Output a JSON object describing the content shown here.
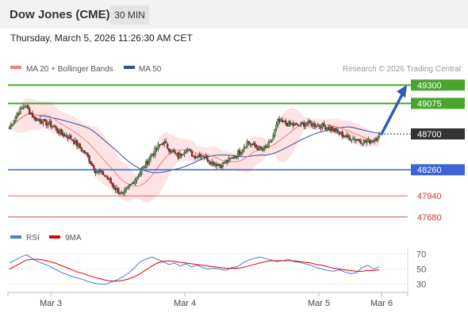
{
  "header": {
    "title": "Dow Jones (CME)",
    "timeframe": "30 MIN",
    "datetime": "Thursday, March 5, 2026 11:26:30 AM CET"
  },
  "legend": {
    "ma20_label": "MA 20 + Bollinger Bands",
    "ma50_label": "MA 50",
    "copyright": "Research © 2026 Trading Central",
    "ma20_color": "#f08080",
    "ma50_color": "#2c4f9e"
  },
  "rsi_legend": {
    "rsi_label": "RSI",
    "ma_label": "9MA",
    "rsi_color": "#4a7ad8",
    "ma_color": "#e00000"
  },
  "chart_data": [
    {
      "type": "candlestick",
      "title": "Dow Jones (CME) 30 MIN",
      "x_labels": [
        "Mar 3",
        "Mar 4",
        "Mar 5",
        "Mar 6"
      ],
      "ylim": [
        47620,
        49420
      ],
      "close_path": [
        {
          "x": 0,
          "y": 48780
        },
        {
          "x": 5,
          "y": 48950
        },
        {
          "x": 10,
          "y": 49050
        },
        {
          "x": 16,
          "y": 48900
        },
        {
          "x": 22,
          "y": 48850
        },
        {
          "x": 28,
          "y": 48800
        },
        {
          "x": 34,
          "y": 48700
        },
        {
          "x": 40,
          "y": 48650
        },
        {
          "x": 45,
          "y": 48550
        },
        {
          "x": 50,
          "y": 48450
        },
        {
          "x": 56,
          "y": 48250
        },
        {
          "x": 62,
          "y": 48200
        },
        {
          "x": 68,
          "y": 48050
        },
        {
          "x": 74,
          "y": 47950
        },
        {
          "x": 80,
          "y": 48100
        },
        {
          "x": 86,
          "y": 48250
        },
        {
          "x": 93,
          "y": 48450
        },
        {
          "x": 100,
          "y": 48600
        },
        {
          "x": 105,
          "y": 48500
        },
        {
          "x": 110,
          "y": 48420
        },
        {
          "x": 115,
          "y": 48520
        },
        {
          "x": 120,
          "y": 48430
        },
        {
          "x": 126,
          "y": 48450
        },
        {
          "x": 132,
          "y": 48350
        },
        {
          "x": 138,
          "y": 48320
        },
        {
          "x": 145,
          "y": 48400
        },
        {
          "x": 150,
          "y": 48480
        },
        {
          "x": 155,
          "y": 48600
        },
        {
          "x": 160,
          "y": 48550
        },
        {
          "x": 165,
          "y": 48500
        },
        {
          "x": 170,
          "y": 48580
        },
        {
          "x": 175,
          "y": 48850
        },
        {
          "x": 180,
          "y": 48830
        },
        {
          "x": 187,
          "y": 48800
        },
        {
          "x": 194,
          "y": 48830
        },
        {
          "x": 201,
          "y": 48810
        },
        {
          "x": 208,
          "y": 48780
        },
        {
          "x": 214,
          "y": 48720
        },
        {
          "x": 220,
          "y": 48660
        },
        {
          "x": 226,
          "y": 48640
        },
        {
          "x": 232,
          "y": 48600
        },
        {
          "x": 237,
          "y": 48620
        },
        {
          "x": 241,
          "y": 48700
        }
      ],
      "bars": 242,
      "series": [
        {
          "name": "MA 20 + Bollinger Bands",
          "color": "#f08080"
        },
        {
          "name": "MA 50",
          "color": "#2c4f9e"
        }
      ],
      "levels": [
        {
          "value": 49300,
          "label": "49300",
          "kind": "resistance",
          "color": "#4aa52e"
        },
        {
          "value": 49075,
          "label": "49075",
          "kind": "resistance",
          "color": "#4aa52e"
        },
        {
          "value": 48700,
          "label": "48700",
          "kind": "last",
          "color": "#333333"
        },
        {
          "value": 48260,
          "label": "48260",
          "kind": "pivot",
          "color": "#3a64d8"
        },
        {
          "value": 47940,
          "label": "47940",
          "kind": "support",
          "color": "#e03030"
        },
        {
          "value": 47680,
          "label": "47680",
          "kind": "support",
          "color": "#e03030"
        }
      ],
      "arrow": {
        "from": 48700,
        "to": 49300,
        "direction": "up",
        "color": "#2c5fae"
      }
    },
    {
      "type": "line",
      "title": "RSI",
      "x_labels": [
        "Mar 3",
        "Mar 4",
        "Mar 5",
        "Mar 6"
      ],
      "ylim": [
        20,
        80
      ],
      "y_ticks": [
        "70",
        "50",
        "30"
      ],
      "series": [
        {
          "name": "RSI",
          "color": "#4a7ad8",
          "values": [
            58,
            62,
            66,
            69,
            64,
            60,
            57,
            54,
            50,
            46,
            43,
            40,
            38,
            36,
            33,
            31,
            30,
            30,
            33,
            36,
            40,
            45,
            52,
            60,
            63,
            66,
            63,
            60,
            56,
            58,
            54,
            57,
            53,
            55,
            52,
            50,
            51,
            50,
            48,
            52,
            53,
            58,
            62,
            64,
            66,
            64,
            62,
            60,
            61,
            63,
            60,
            59,
            57,
            55,
            52,
            50,
            48,
            47,
            49,
            46,
            44,
            45,
            52,
            55,
            50,
            53
          ]
        },
        {
          "name": "9MA",
          "color": "#e00000",
          "values": [
            50,
            54,
            58,
            62,
            63,
            63,
            62,
            60,
            58,
            55,
            52,
            49,
            46,
            44,
            41,
            39,
            37,
            35,
            34,
            34,
            35,
            37,
            40,
            44,
            49,
            54,
            58,
            60,
            61,
            60,
            59,
            58,
            57,
            56,
            55,
            54,
            53,
            52,
            51,
            51,
            51,
            52,
            54,
            56,
            58,
            60,
            61,
            61,
            61,
            61,
            61,
            60,
            59,
            58,
            56,
            55,
            53,
            51,
            50,
            49,
            48,
            47,
            47,
            48,
            48,
            49
          ]
        }
      ]
    }
  ]
}
